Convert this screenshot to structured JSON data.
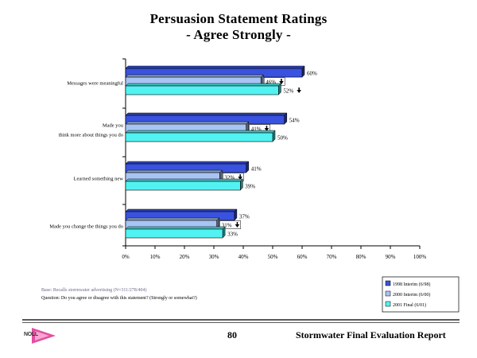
{
  "title_line1": "Persuasion Statement Ratings",
  "title_line2": "- Agree Strongly -",
  "footer": {
    "base_note": "Base:  Recalls stormwater advertising (N=311/278/404)",
    "question": "Question:  Do you agree or disagree with this statement?  (Strongly or somewhat?)",
    "page_number": "80",
    "report_title": "Stormwater Final Evaluation Report",
    "logo_text": "NOLL"
  },
  "colors": {
    "series_1998": "#3a52e0",
    "series_2000": "#a8c4f4",
    "series_2001": "#52f2f2"
  },
  "chart_data": {
    "type": "bar",
    "orientation": "horizontal",
    "categories": [
      "Messages were meaningful",
      "Made you think more about things you do",
      "Learned something new",
      "Made you change the things you do"
    ],
    "category_label_lines": [
      [
        "Messages were meaningful"
      ],
      [
        "Made you",
        "think more about things you do"
      ],
      [
        "Learned something new"
      ],
      [
        "Made you change the things you do"
      ]
    ],
    "series": [
      {
        "name": "1998 Interim (6/98)",
        "values": [
          60,
          54,
          41,
          37
        ],
        "labels": [
          "60%",
          "54%",
          "41%",
          "37%"
        ]
      },
      {
        "name": "2000 Interim (6/00)",
        "values": [
          46,
          41,
          32,
          31
        ],
        "labels": [
          "46%",
          "41%",
          "32%",
          "31%"
        ],
        "down_arrow": [
          true,
          true,
          true,
          true
        ]
      },
      {
        "name": "2001 Final (6/01)",
        "values": [
          52,
          50,
          39,
          33
        ],
        "labels": [
          "52%",
          "50%",
          "39%",
          "33%"
        ],
        "down_arrow": [
          true,
          false,
          false,
          false
        ]
      }
    ],
    "xlim": [
      0,
      100
    ],
    "x_ticks": [
      "0%",
      "10%",
      "20%",
      "30%",
      "40%",
      "50%",
      "60%",
      "70%",
      "80%",
      "90%",
      "100%"
    ],
    "legend_position": "bottom-right",
    "grid": false
  }
}
